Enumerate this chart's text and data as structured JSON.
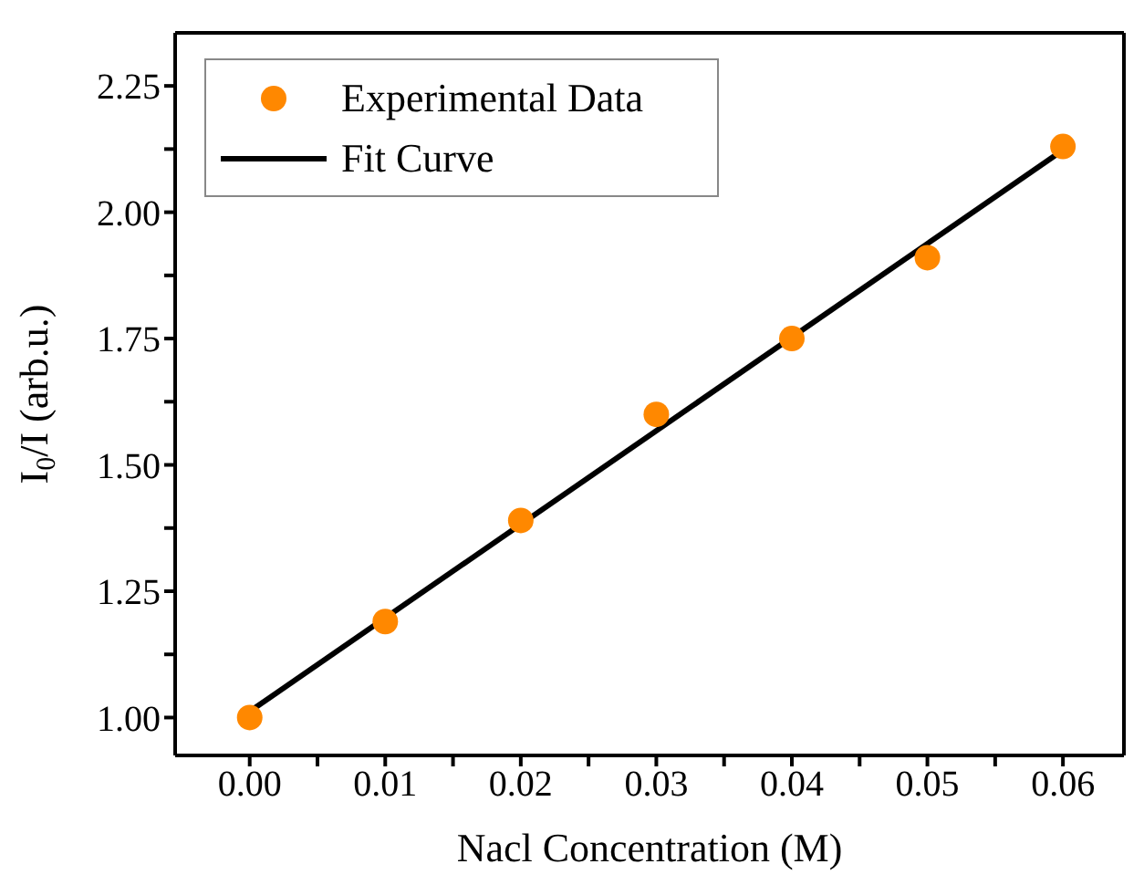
{
  "chart_data": {
    "type": "scatter",
    "xlabel": "Nacl Concentration (M)",
    "ylabel": "I$_{0}$/I (arb.u.)",
    "xlim": [
      -0.0055,
      0.0645
    ],
    "ylim": [
      0.925,
      2.355
    ],
    "xticks": [
      {
        "value": 0,
        "label": "0.00"
      },
      {
        "value": 0.005,
        "label": null
      },
      {
        "value": 0.01,
        "label": "0.01"
      },
      {
        "value": 0.015,
        "label": null
      },
      {
        "value": 0.02,
        "label": "0.02"
      },
      {
        "value": 0.025,
        "label": null
      },
      {
        "value": 0.03,
        "label": "0.03"
      },
      {
        "value": 0.035,
        "label": null
      },
      {
        "value": 0.04,
        "label": "0.04"
      },
      {
        "value": 0.045,
        "label": null
      },
      {
        "value": 0.05,
        "label": "0.05"
      },
      {
        "value": 0.055,
        "label": null
      },
      {
        "value": 0.06,
        "label": "0.06"
      }
    ],
    "yticks": [
      {
        "value": 1,
        "label": "1.00"
      },
      {
        "value": 1.125,
        "label": null
      },
      {
        "value": 1.25,
        "label": "1.25"
      },
      {
        "value": 1.375,
        "label": null
      },
      {
        "value": 1.5,
        "label": "1.50"
      },
      {
        "value": 1.625,
        "label": null
      },
      {
        "value": 1.75,
        "label": "1.75"
      },
      {
        "value": 1.875,
        "label": null
      },
      {
        "value": 2,
        "label": "2.00"
      },
      {
        "value": 2.125,
        "label": null
      },
      {
        "value": 2.25,
        "label": "2.25"
      }
    ],
    "x": [
      0,
      0.01,
      0.02,
      0.03,
      0.04,
      0.05,
      0.06
    ],
    "series": [
      {
        "name": "Experimental Data",
        "color": "#ff8800",
        "marker": "circle",
        "values": [
          1.0,
          1.19,
          1.39,
          1.6,
          1.75,
          1.91,
          2.13
        ]
      },
      {
        "name": "Fit Curve",
        "type": "line",
        "color": "#000000",
        "marker": "none",
        "line_style": "solid",
        "x": [
          0,
          0.06
        ],
        "values": [
          1.012,
          2.123
        ]
      }
    ],
    "legend": "top left",
    "grid": false
  }
}
